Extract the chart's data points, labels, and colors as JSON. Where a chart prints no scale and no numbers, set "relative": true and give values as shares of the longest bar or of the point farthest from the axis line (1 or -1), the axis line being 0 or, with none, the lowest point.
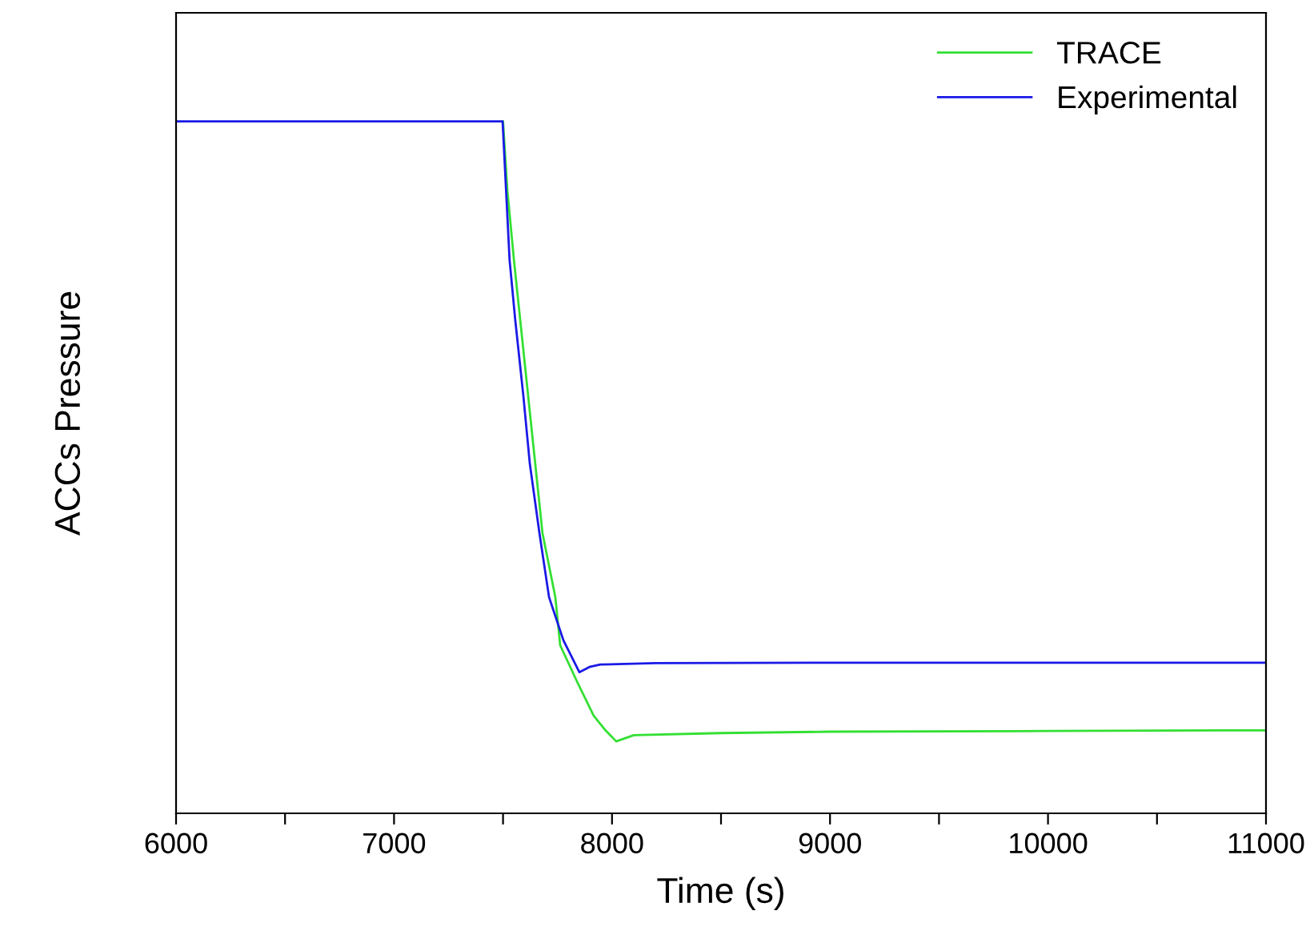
{
  "chart_data": {
    "type": "line",
    "xlabel": "Time (s)",
    "ylabel": "ACCs Pressure",
    "relative": true,
    "xlim": [
      6000,
      11000
    ],
    "xticks": [
      6000,
      {
        "value": 6500,
        "label": null
      },
      7000,
      {
        "value": 7500,
        "label": null
      },
      8000,
      {
        "value": 8500,
        "label": null
      },
      9000,
      {
        "value": 9500,
        "label": null
      },
      10000,
      {
        "value": 10500,
        "label": null
      },
      11000
    ],
    "legend": "top right",
    "grid": false,
    "series": [
      {
        "name": "TRACE",
        "color": "#33e033",
        "x": [
          7500,
          7520,
          7550,
          7615,
          7681,
          7740,
          7762,
          7840,
          7916,
          7970,
          8019,
          8100,
          8500,
          9000,
          10000,
          11000
        ],
        "values": [
          1.0,
          0.9,
          0.8,
          0.604,
          0.405,
          0.3125,
          0.243,
          0.19,
          0.141,
          0.12,
          0.104,
          0.113,
          0.116,
          0.118,
          0.119,
          0.12
        ]
      },
      {
        "name": "Experimental",
        "color": "#1a1ae6",
        "x": [
          6000,
          7000,
          7498,
          7530,
          7556,
          7593,
          7623,
          7667,
          7711,
          7777,
          7850,
          7900,
          7946,
          8200,
          9000,
          10000,
          11000
        ],
        "values": [
          1.0,
          1.0,
          1.0,
          0.8,
          0.713,
          0.604,
          0.505,
          0.405,
          0.3125,
          0.25,
          0.204,
          0.212,
          0.215,
          0.217,
          0.2176,
          0.2176,
          0.2176
        ]
      }
    ]
  }
}
